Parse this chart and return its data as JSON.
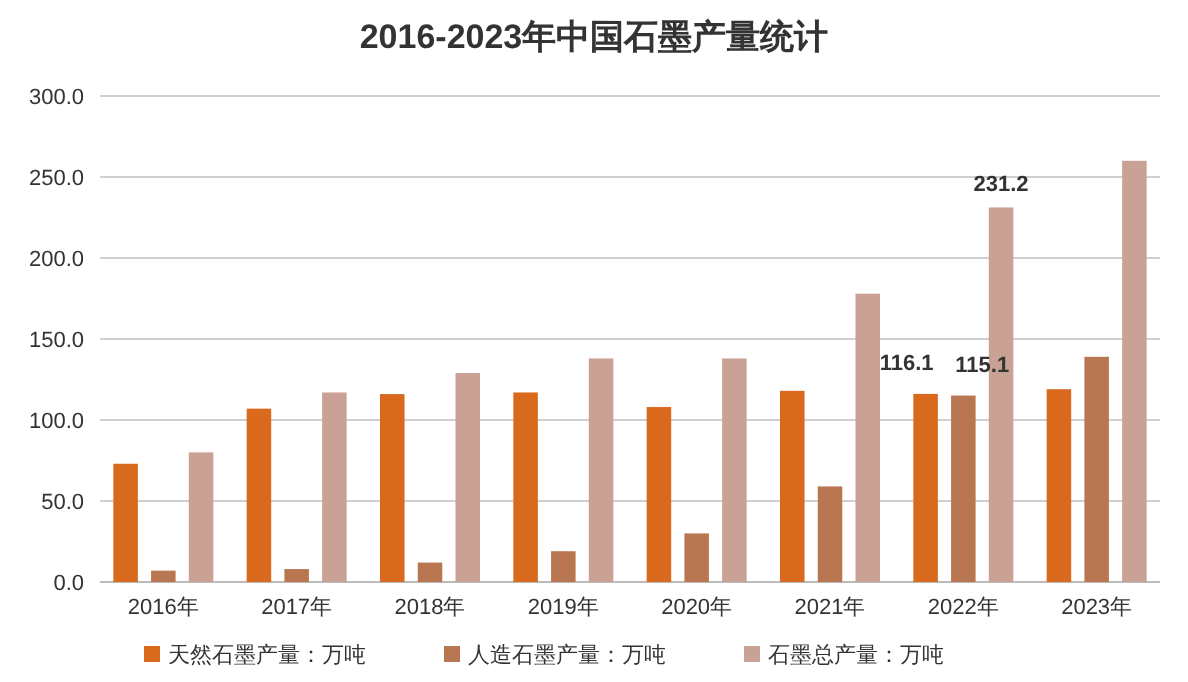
{
  "chart_data": {
    "type": "bar",
    "title": "2016-2023年中国石墨产量统计",
    "categories": [
      "2016年",
      "2017年",
      "2018年",
      "2019年",
      "2020年",
      "2021年",
      "2022年",
      "2023年"
    ],
    "series": [
      {
        "name": "天然石墨产量：万吨",
        "color": "#d9691c",
        "values": [
          73,
          107,
          116,
          117,
          108,
          118,
          116.1,
          119
        ],
        "value_labels": [
          null,
          null,
          null,
          null,
          null,
          null,
          "116.1",
          null
        ]
      },
      {
        "name": "人造石墨产量：万吨",
        "color": "#b87750",
        "values": [
          7,
          8,
          12,
          19,
          30,
          59,
          115.1,
          139
        ],
        "value_labels": [
          null,
          null,
          null,
          null,
          null,
          null,
          "115.1",
          null
        ]
      },
      {
        "name": "石墨总产量：万吨",
        "color": "#c9a195",
        "values": [
          80,
          117,
          129,
          138,
          138,
          178,
          231.2,
          260
        ],
        "value_labels": [
          null,
          null,
          null,
          null,
          null,
          null,
          "231.2",
          null
        ]
      }
    ],
    "ylim": [
      0,
      300
    ],
    "yticks": [
      {
        "value": 0,
        "label": "0.0"
      },
      {
        "value": 50,
        "label": "50.0"
      },
      {
        "value": 100,
        "label": "100.0"
      },
      {
        "value": 150,
        "label": "150.0"
      },
      {
        "value": 200,
        "label": "200.0"
      },
      {
        "value": 250,
        "label": "250.0"
      },
      {
        "value": 300,
        "label": "300.0"
      }
    ],
    "grid": "y",
    "legend": "bottom"
  }
}
